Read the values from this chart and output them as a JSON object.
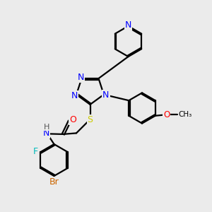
{
  "bg_color": "#ebebeb",
  "bond_color": "#000000",
  "bond_width": 1.6,
  "atom_colors": {
    "N": "#0000ff",
    "S": "#cccc00",
    "O": "#ff0000",
    "F": "#00bbbb",
    "Br": "#cc6600",
    "C": "#000000",
    "H": "#555555"
  },
  "dbl_off": 0.055
}
